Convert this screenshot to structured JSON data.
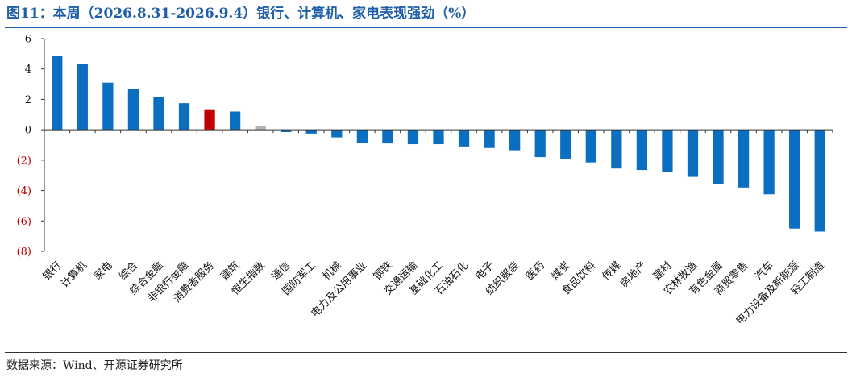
{
  "title": "图11：本周（2026.8.31-2026.9.4）银行、计算机、家电表现强劲（%）",
  "source": "数据来源：Wind、开源证券研究所",
  "chart_data": {
    "type": "bar",
    "title": "图11：本周（2026.8.31-2026.9.4）银行、计算机、家电表现强劲（%）",
    "xlabel": "",
    "ylabel": "",
    "ylim": [
      -8,
      6
    ],
    "yticks": [
      6,
      4,
      2,
      0,
      -2,
      -4,
      -6,
      -8
    ],
    "ytick_labels": [
      "6",
      "4",
      "2",
      "0",
      "(2)",
      "(4)",
      "(6)",
      "(8)"
    ],
    "grid": false,
    "legend": "none",
    "categories": [
      "银行",
      "计算机",
      "家电",
      "综合",
      "综合金融",
      "非银行金融",
      "消费者服务",
      "建筑",
      "恒生指数",
      "通信",
      "国防军工",
      "机械",
      "电力及公用事业",
      "钢铁",
      "交通运输",
      "基础化工",
      "石油石化",
      "电子",
      "纺织服装",
      "医药",
      "煤炭",
      "食品饮料",
      "传媒",
      "房地产",
      "建材",
      "农林牧渔",
      "有色金属",
      "商贸零售",
      "汽车",
      "电力设备及新能源",
      "轻工制造"
    ],
    "values": [
      4.85,
      4.35,
      3.1,
      2.7,
      2.15,
      1.75,
      1.35,
      1.2,
      0.25,
      -0.15,
      -0.25,
      -0.5,
      -0.85,
      -0.9,
      -0.95,
      -0.95,
      -1.1,
      -1.2,
      -1.35,
      -1.8,
      -1.9,
      -2.15,
      -2.55,
      -2.65,
      -2.75,
      -3.1,
      -3.55,
      -3.8,
      -4.25,
      -6.5,
      -6.7
    ],
    "bar_colors": [
      "#0b6fc1",
      "#0b6fc1",
      "#0b6fc1",
      "#0b6fc1",
      "#0b6fc1",
      "#0b6fc1",
      "#c00000",
      "#0b6fc1",
      "#b3b3b3",
      "#0b6fc1",
      "#0b6fc1",
      "#0b6fc1",
      "#0b6fc1",
      "#0b6fc1",
      "#0b6fc1",
      "#0b6fc1",
      "#0b6fc1",
      "#0b6fc1",
      "#0b6fc1",
      "#0b6fc1",
      "#0b6fc1",
      "#0b6fc1",
      "#0b6fc1",
      "#0b6fc1",
      "#0b6fc1",
      "#0b6fc1",
      "#0b6fc1",
      "#0b6fc1",
      "#0b6fc1",
      "#0b6fc1",
      "#0b6fc1"
    ],
    "colors": {
      "bar": "#0b6fc1",
      "highlight": "#c00000",
      "index": "#b3b3b3",
      "negative_tick": "#c00000",
      "positive_tick": "#111111",
      "title": "#1f5fa8"
    }
  }
}
